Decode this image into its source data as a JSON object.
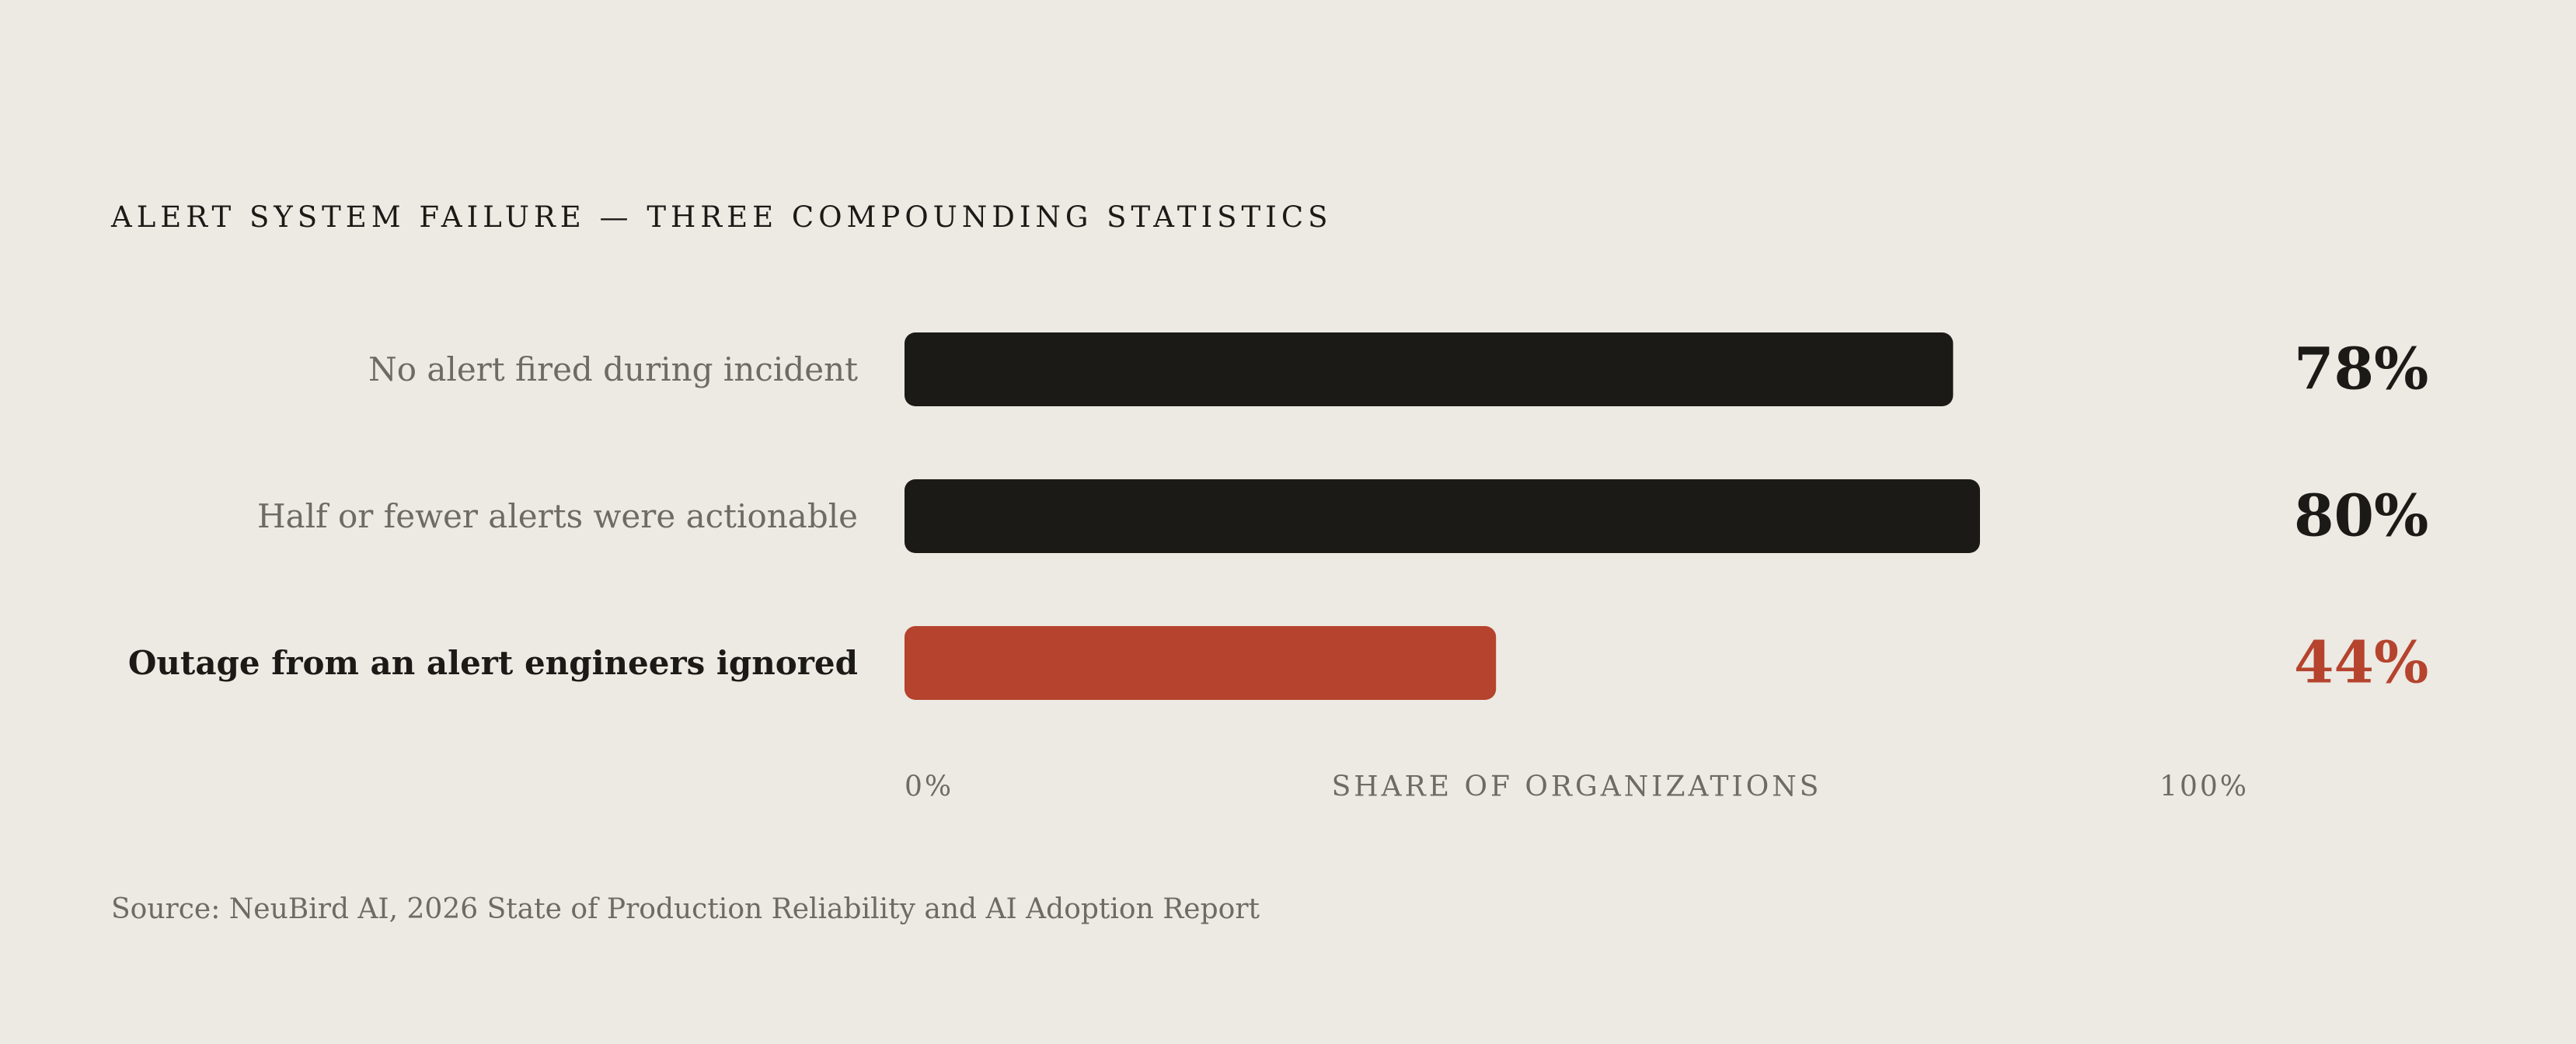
{
  "colors": {
    "background": "#EDE9E3",
    "bar_dark": "#1C1A17",
    "bar_accent": "#B5432D",
    "label_muted": "#6E6A65"
  },
  "chart_data": {
    "type": "bar",
    "orientation": "horizontal",
    "title": "ALERT SYSTEM FAILURE — THREE COMPOUNDING STATISTICS",
    "xlabel": "SHARE OF ORGANIZATIONS",
    "xlim": [
      0,
      100
    ],
    "x_ticks": [
      "0%",
      "100%"
    ],
    "grid": false,
    "categories": [
      "No alert fired during incident",
      "Half or fewer alerts were actionable",
      "Outage from an alert engineers ignored"
    ],
    "values": [
      78,
      80,
      44
    ],
    "value_labels": [
      "78%",
      "80%",
      "44%"
    ],
    "highlighted": [
      false,
      false,
      true
    ]
  },
  "source": "Source: NeuBird AI, 2026 State of Production Reliability and AI Adoption Report"
}
